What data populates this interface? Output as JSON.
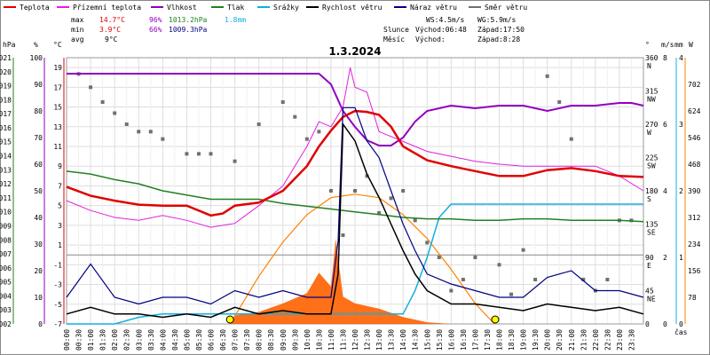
{
  "colors": {
    "temperature": "#e00000",
    "feels_like": "#e020e0",
    "humidity": "#9000c0",
    "pressure": "#208020",
    "precipitation": "#10b0e0",
    "wind_speed": "#000000",
    "wind_gust": "#000080",
    "wind_dir": "#707070",
    "sun": "#ff8000",
    "radiation": "#ff6000",
    "sun_marker": "#ffff00"
  },
  "legend": [
    {
      "label": "Teplota",
      "color_key": "temperature"
    },
    {
      "label": "Přízemní teplota",
      "color_key": "feels_like"
    },
    {
      "label": "Vlhkost",
      "color_key": "humidity"
    },
    {
      "label": "Tlak",
      "color_key": "pressure"
    },
    {
      "label": "Srážky",
      "color_key": "precipitation"
    },
    {
      "label": "Rychlost větru",
      "color_key": "wind_speed"
    },
    {
      "label": "Náraz větru",
      "color_key": "wind_gust"
    },
    {
      "label": "Směr větru",
      "color_key": "wind_dir"
    }
  ],
  "stats": {
    "max_label": "max",
    "min_label": "min",
    "avg_label": "avg",
    "max_temp": "14.7°C",
    "max_hum": "96%",
    "max_press": "1013.2hPa",
    "max_precip": "1.8mm",
    "min_temp": "3.9°C",
    "min_hum": "66%",
    "min_press": "1009.3hPa",
    "avg_temp": "9°C"
  },
  "wind_info": {
    "ws": "WS:4.5m/s",
    "wg": "WG:5.9m/s",
    "sun_label": "Slunce",
    "sunrise": "Východ:06:48",
    "sunset": "Západ:17:50",
    "moon_label": "Měsíc",
    "moonrise": "Východ:",
    "moonset": "Západ:8:28"
  },
  "chart_data": {
    "type": "line",
    "title": "1.3.2024",
    "x_axis_label": "čas",
    "x_ticks": [
      "00:00",
      "00:30",
      "01:00",
      "01:30",
      "02:00",
      "02:30",
      "03:00",
      "03:30",
      "04:00",
      "04:30",
      "05:00",
      "05:30",
      "06:00",
      "06:30",
      "07:00",
      "07:30",
      "08:00",
      "08:30",
      "09:00",
      "09:30",
      "10:00",
      "10:30",
      "11:00",
      "11:30",
      "12:00",
      "12:30",
      "13:00",
      "13:30",
      "14:00",
      "14:30",
      "15:00",
      "15:30",
      "16:00",
      "16:30",
      "17:00",
      "17:30",
      "18:00",
      "18:30",
      "19:00",
      "19:30",
      "20:00",
      "20:30",
      "21:00",
      "21:30",
      "22:00",
      "22:30",
      "23:00",
      "23:30"
    ],
    "axes": {
      "pressure_hpa": {
        "unit": "hPa",
        "range": [
          1002,
          1021
        ],
        "ticks": [
          "1021",
          "1020",
          "1019",
          "1018",
          "1017",
          "1016",
          "1015",
          "1014",
          "1013",
          "1012",
          "1011",
          "1010",
          "1009",
          "1008",
          "1007",
          "1006",
          "1005",
          "1004",
          "1003",
          "1002"
        ]
      },
      "humidity_pct": {
        "unit": "%",
        "range": [
          0,
          100
        ],
        "ticks": [
          "100",
          "90",
          "80",
          "70",
          "60",
          "50",
          "40",
          "30",
          "20",
          "10",
          "0"
        ]
      },
      "temperature_c": {
        "unit": "°C",
        "range": [
          -7,
          20
        ],
        "ticks": [
          "19",
          "17",
          "15",
          "13",
          "11",
          "9",
          "7",
          "5",
          "3",
          "1",
          "-1",
          "-3",
          "-5",
          "-7"
        ]
      },
      "wind_dir_deg": {
        "unit": "°",
        "range": [
          0,
          360
        ],
        "ticks": [
          "360",
          "315",
          "270",
          "225",
          "180",
          "135",
          "90",
          "45",
          "0"
        ],
        "compass": [
          "N",
          "NW",
          "W",
          "SW",
          "S",
          "SE",
          "E",
          "NE",
          ""
        ]
      },
      "wind_ms": {
        "unit": "m/s",
        "range": [
          0,
          8
        ],
        "ticks": [
          "8",
          "6",
          "4",
          "2",
          "0"
        ]
      },
      "precip_mm": {
        "unit": "mm",
        "range": [
          0,
          4
        ],
        "ticks": [
          "4",
          "3",
          "2",
          "1",
          "0"
        ]
      },
      "radiation_w": {
        "unit": "W",
        "range": [
          0,
          780
        ],
        "ticks": [
          "702",
          "624",
          "546",
          "468",
          "390",
          "312",
          "234",
          "156",
          "78"
        ]
      }
    },
    "series": [
      {
        "name": "Teplota",
        "key": "temperature",
        "x": [
          0,
          1,
          2,
          3,
          4,
          5,
          6,
          6.5,
          7,
          8,
          9,
          10,
          10.5,
          11,
          11.5,
          12,
          12.5,
          13,
          13.5,
          14,
          15,
          16,
          17,
          18,
          19,
          20,
          21,
          22,
          23,
          24
        ],
        "y": [
          6.9,
          6.0,
          5.5,
          5.1,
          5.0,
          5.0,
          4.0,
          4.2,
          5.0,
          5.3,
          6.5,
          9.0,
          11.0,
          12.6,
          14.0,
          14.6,
          14.5,
          14.2,
          13.0,
          11.0,
          9.6,
          9.0,
          8.5,
          8.0,
          8.0,
          8.6,
          8.8,
          8.5,
          8.0,
          7.9
        ]
      },
      {
        "name": "Přízemní teplota",
        "key": "feels_like",
        "x": [
          0,
          1,
          2,
          3,
          4,
          5,
          6,
          6.5,
          7,
          8,
          9,
          10,
          10.5,
          11,
          11.5,
          11.8,
          12,
          12.5,
          13,
          14,
          15,
          16,
          17,
          18,
          19,
          20,
          21,
          22,
          23,
          24
        ],
        "y": [
          5.5,
          4.5,
          3.8,
          3.5,
          4.0,
          3.5,
          2.8,
          3.0,
          3.2,
          5.0,
          7.0,
          11.0,
          13.5,
          13.0,
          15.0,
          19.0,
          17.0,
          16.5,
          12.5,
          11.5,
          10.5,
          10.0,
          9.5,
          9.2,
          9.0,
          9.0,
          9.0,
          9.0,
          8.0,
          6.5
        ]
      },
      {
        "name": "Vlhkost",
        "key": "humidity",
        "x": [
          0,
          1,
          2,
          3,
          4,
          5,
          6,
          7,
          8,
          9,
          10,
          10.5,
          11,
          11.5,
          12,
          12.5,
          13,
          13.5,
          14,
          14.5,
          15,
          16,
          17,
          18,
          19,
          20,
          21,
          22,
          23,
          23.5,
          24
        ],
        "y": [
          94,
          94,
          94,
          94,
          94,
          94,
          94,
          94,
          94,
          94,
          94,
          94,
          90,
          80,
          74,
          69,
          67,
          67,
          70,
          76,
          80,
          82,
          81,
          82,
          82,
          80,
          82,
          82,
          83,
          83,
          82
        ]
      },
      {
        "name": "Tlak",
        "key": "pressure",
        "x": [
          0,
          1,
          2,
          3,
          4,
          5,
          6,
          7,
          8,
          9,
          10,
          11,
          12,
          13,
          14,
          15,
          16,
          17,
          18,
          19,
          20,
          21,
          22,
          23,
          24
        ],
        "y": [
          1012.9,
          1012.7,
          1012.3,
          1012.0,
          1011.5,
          1011.2,
          1010.9,
          1010.9,
          1010.9,
          1010.6,
          1010.4,
          1010.2,
          1010.0,
          1009.8,
          1009.6,
          1009.5,
          1009.5,
          1009.4,
          1009.4,
          1009.5,
          1009.5,
          1009.4,
          1009.4,
          1009.4,
          1009.3
        ]
      },
      {
        "name": "Srážky",
        "key": "precipitation",
        "x": [
          0,
          1,
          2,
          3,
          4,
          5,
          6,
          7,
          8,
          9,
          10,
          11,
          12,
          13,
          14,
          14.5,
          15,
          15.5,
          16,
          16.5,
          17,
          18,
          19,
          20,
          21,
          22,
          23,
          24
        ],
        "y": [
          0,
          0,
          0,
          0.1,
          0.15,
          0.15,
          0.15,
          0.15,
          0.15,
          0.15,
          0.15,
          0.15,
          0.15,
          0.15,
          0.15,
          0.5,
          1.0,
          1.6,
          1.8,
          1.8,
          1.8,
          1.8,
          1.8,
          1.8,
          1.8,
          1.8,
          1.8,
          1.8
        ]
      },
      {
        "name": "Rychlost větru",
        "key": "wind_speed",
        "x": [
          0,
          1,
          2,
          3,
          4,
          5,
          6,
          7,
          8,
          9,
          10,
          11,
          11.3,
          11.5,
          12,
          12.5,
          13,
          13.5,
          14,
          14.5,
          15,
          16,
          17,
          18,
          19,
          20,
          21,
          22,
          23,
          24
        ],
        "y": [
          0.3,
          0.5,
          0.3,
          0.3,
          0.2,
          0.3,
          0.2,
          0.5,
          0.3,
          0.4,
          0.3,
          0.3,
          1.5,
          6.0,
          5.5,
          4.5,
          3.8,
          3.0,
          2.2,
          1.5,
          1.0,
          0.6,
          0.6,
          0.5,
          0.4,
          0.6,
          0.5,
          0.4,
          0.5,
          0.3
        ]
      },
      {
        "name": "Náraz větru",
        "key": "wind_gust",
        "x": [
          0,
          1,
          2,
          3,
          4,
          5,
          6,
          7,
          8,
          9,
          10,
          11,
          11.3,
          11.5,
          12,
          12.5,
          13,
          13.5,
          14,
          14.5,
          15,
          16,
          17,
          18,
          19,
          20,
          21,
          22,
          23,
          24
        ],
        "y": [
          0.8,
          1.8,
          0.8,
          0.6,
          0.8,
          0.8,
          0.6,
          1.0,
          0.8,
          1.0,
          0.8,
          0.8,
          2.5,
          6.5,
          6.5,
          5.5,
          5.0,
          4.0,
          3.0,
          2.2,
          1.5,
          1.2,
          1.0,
          0.8,
          0.8,
          1.4,
          1.6,
          1.0,
          1.0,
          0.8
        ]
      },
      {
        "name": "Směr větru",
        "key": "wind_dir",
        "type": "scatter",
        "x": [
          0.5,
          1,
          1.5,
          2,
          2.5,
          3,
          3.5,
          4,
          5,
          5.5,
          6,
          7,
          8,
          9,
          9.5,
          10,
          10.5,
          11,
          11.5,
          12,
          12.5,
          13,
          13.5,
          14,
          14.5,
          15,
          15.5,
          16,
          16.5,
          17,
          18,
          18.5,
          19,
          19.5,
          20,
          20.5,
          21,
          21.5,
          22,
          22.5,
          23,
          23.5
        ],
        "y": [
          338,
          320,
          300,
          285,
          270,
          260,
          260,
          250,
          230,
          230,
          230,
          220,
          270,
          300,
          280,
          250,
          260,
          180,
          120,
          180,
          200,
          150,
          170,
          180,
          140,
          110,
          90,
          45,
          60,
          90,
          80,
          40,
          100,
          60,
          335,
          300,
          250,
          60,
          45,
          60,
          140,
          140
        ]
      },
      {
        "name": "Sluneční dráha",
        "key": "sun",
        "x": [
          6.8,
          8,
          9,
          10,
          11,
          12,
          13,
          14,
          15,
          16,
          17,
          17.8
        ],
        "y": [
          0,
          140,
          240,
          320,
          370,
          380,
          370,
          320,
          250,
          160,
          60,
          0
        ]
      },
      {
        "name": "Radiace",
        "key": "radiation",
        "type": "area",
        "x": [
          6.8,
          7,
          8,
          9,
          10,
          10.5,
          11,
          11.2,
          11.5,
          12,
          13,
          14,
          15,
          16,
          17
        ],
        "y": [
          0,
          25,
          35,
          60,
          90,
          150,
          110,
          250,
          80,
          60,
          45,
          20,
          5,
          0,
          0
        ]
      }
    ],
    "grid": true,
    "legend_position": "top-left"
  }
}
